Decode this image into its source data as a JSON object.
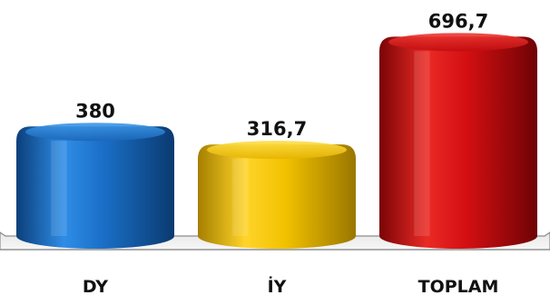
{
  "chart_data": {
    "type": "bar",
    "style": "3d-cylinder",
    "categories": [
      "DY",
      "İY",
      "TOPLAM"
    ],
    "values": [
      380,
      316.7,
      696.7
    ],
    "value_labels": [
      "380",
      "316,7",
      "696,7"
    ],
    "colors": [
      "#1a6fc7",
      "#f2c200",
      "#d40f12"
    ],
    "ylim": [
      0,
      720
    ],
    "grid": false,
    "legend": "none",
    "title": "",
    "xlabel": "",
    "ylabel": ""
  }
}
